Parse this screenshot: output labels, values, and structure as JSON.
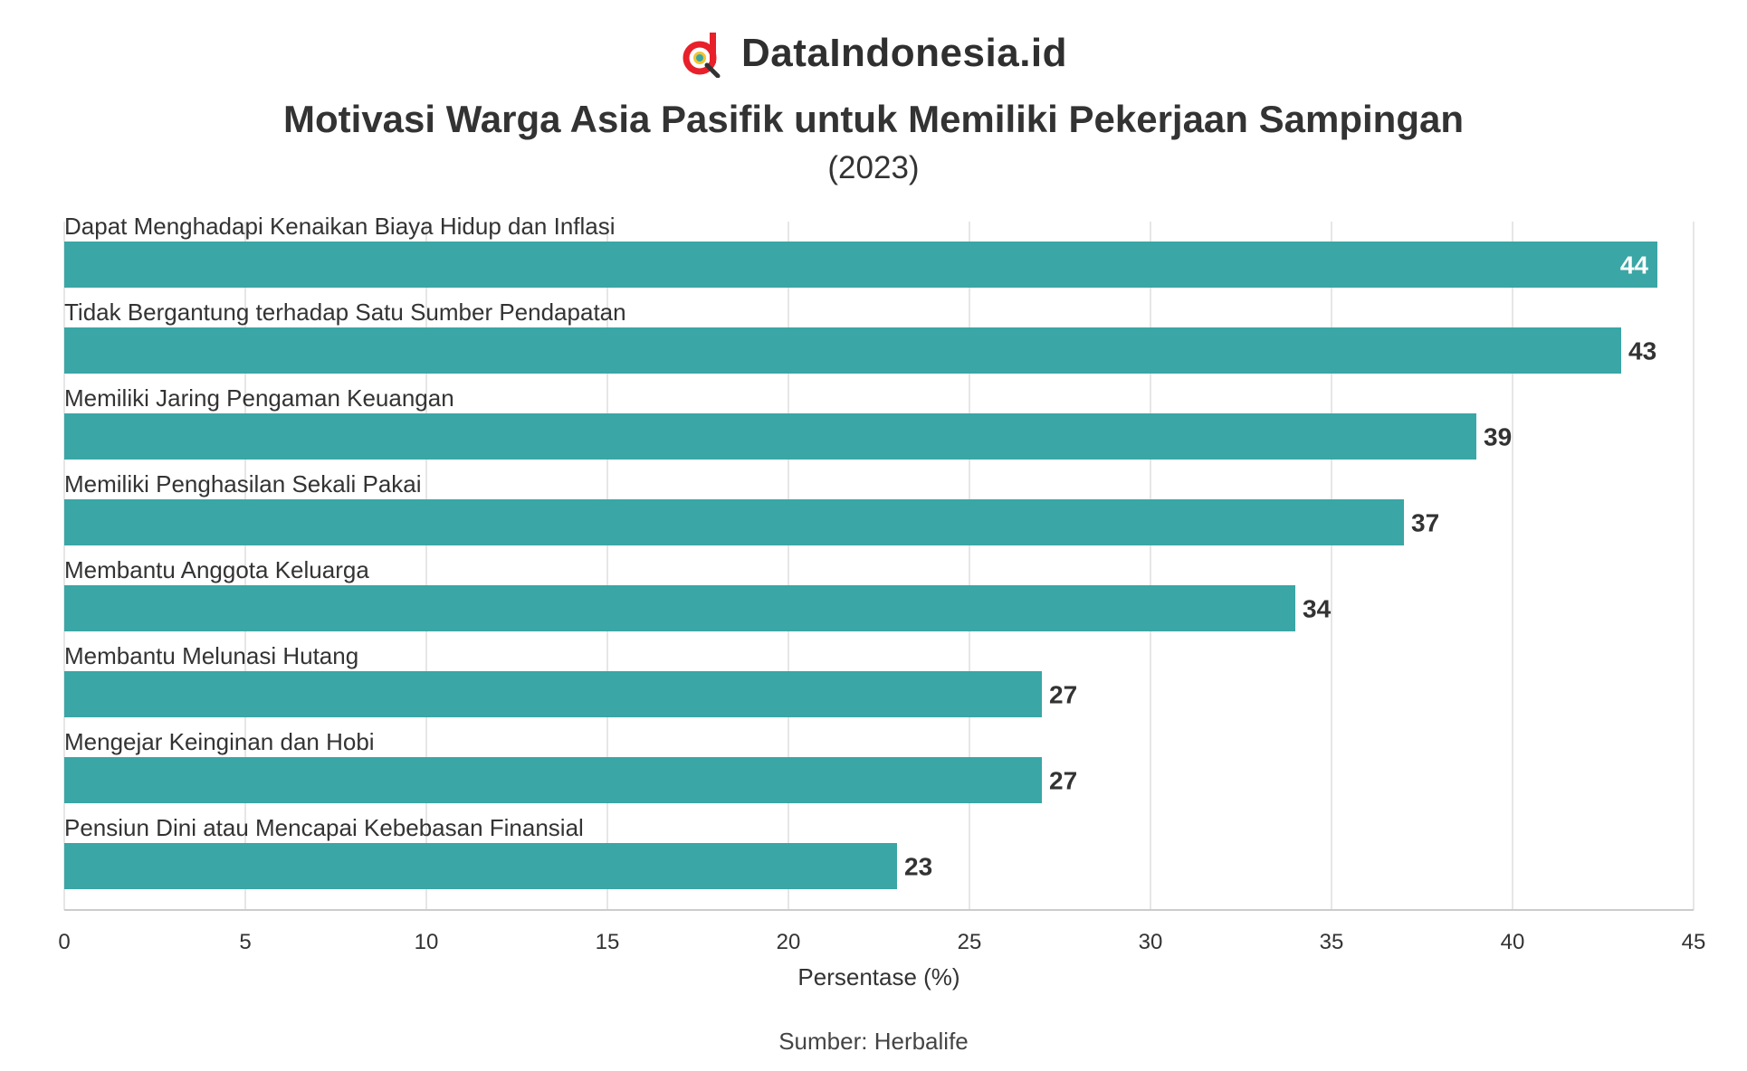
{
  "brand": {
    "name": "DataIndonesia.id",
    "icon": "magnifier-d-logo-icon",
    "accent": "#e8202a"
  },
  "chart_data": {
    "type": "bar",
    "orientation": "horizontal",
    "title": "Motivasi Warga Asia Pasifik untuk Memiliki Pekerjaan Sampingan",
    "subtitle": "(2023)",
    "xlabel": "Persentase (%)",
    "xlim": [
      0,
      45
    ],
    "xticks": [
      0,
      5,
      10,
      15,
      20,
      25,
      30,
      35,
      40,
      45
    ],
    "grid": true,
    "bar_color": "#3aa6a5",
    "categories": [
      "Dapat Menghadapi Kenaikan Biaya Hidup dan Inflasi",
      "Tidak Bergantung terhadap Satu Sumber Pendapatan",
      "Memiliki Jaring Pengaman Keuangan",
      "Memiliki Penghasilan Sekali Pakai",
      "Membantu Anggota Keluarga",
      "Membantu Melunasi Hutang",
      "Mengejar Keinginan dan Hobi",
      "Pensiun Dini atau Mencapai Kebebasan Finansial"
    ],
    "values": [
      44,
      43,
      39,
      37,
      34,
      27,
      27,
      23
    ]
  },
  "source": "Sumber: Herbalife"
}
